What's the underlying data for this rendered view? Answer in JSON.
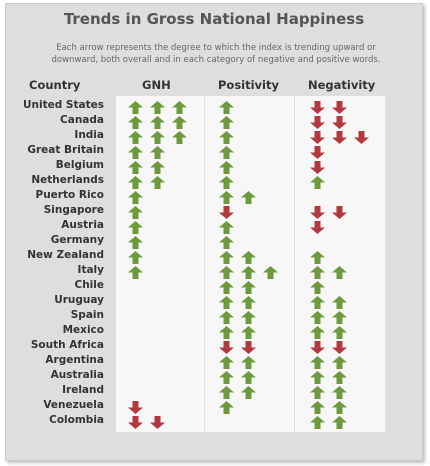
{
  "title": "Trends in Gross National Happiness",
  "subtitle_line1": "Each arrow represents the degree to which the index is trending upward or",
  "subtitle_line2": "downward, both overall and in each category of negative and positive words.",
  "colors": {
    "up": "#6e9a3e",
    "down": "#b23a3f",
    "panel": "#dedede",
    "column": "#f7f7f7"
  },
  "chart_data": {
    "type": "table",
    "columns": [
      "Country",
      "GNH",
      "Positivity",
      "Negativity"
    ],
    "value_meaning": "positive = number of up arrows, negative = number of down arrows",
    "rows": [
      {
        "country": "United States",
        "gnh": 3,
        "positivity": 1,
        "negativity": -2
      },
      {
        "country": "Canada",
        "gnh": 3,
        "positivity": 1,
        "negativity": -2
      },
      {
        "country": "India",
        "gnh": 3,
        "positivity": 1,
        "negativity": -3
      },
      {
        "country": "Great Britain",
        "gnh": 2,
        "positivity": 1,
        "negativity": -1
      },
      {
        "country": "Belgium",
        "gnh": 2,
        "positivity": 1,
        "negativity": -1
      },
      {
        "country": "Netherlands",
        "gnh": 2,
        "positivity": 1,
        "negativity": 1
      },
      {
        "country": "Puerto Rico",
        "gnh": 1,
        "positivity": 2,
        "negativity": 0
      },
      {
        "country": "Singapore",
        "gnh": 1,
        "positivity": -1,
        "negativity": -2
      },
      {
        "country": "Austria",
        "gnh": 1,
        "positivity": 1,
        "negativity": -1
      },
      {
        "country": "Germany",
        "gnh": 1,
        "positivity": 1,
        "negativity": 0
      },
      {
        "country": "New Zealand",
        "gnh": 1,
        "positivity": 2,
        "negativity": 1
      },
      {
        "country": "Italy",
        "gnh": 1,
        "positivity": 3,
        "negativity": 2
      },
      {
        "country": "Chile",
        "gnh": 0,
        "positivity": 2,
        "negativity": 1
      },
      {
        "country": "Uruguay",
        "gnh": 0,
        "positivity": 2,
        "negativity": 2
      },
      {
        "country": "Spain",
        "gnh": 0,
        "positivity": 2,
        "negativity": 2
      },
      {
        "country": "Mexico",
        "gnh": 0,
        "positivity": 2,
        "negativity": 2
      },
      {
        "country": "South Africa",
        "gnh": 0,
        "positivity": -2,
        "negativity": -2
      },
      {
        "country": "Argentina",
        "gnh": 0,
        "positivity": 2,
        "negativity": 2
      },
      {
        "country": "Australia",
        "gnh": 0,
        "positivity": 2,
        "negativity": 2
      },
      {
        "country": "Ireland",
        "gnh": 0,
        "positivity": 2,
        "negativity": 2
      },
      {
        "country": "Venezuela",
        "gnh": -1,
        "positivity": 1,
        "negativity": 2
      },
      {
        "country": "Colombia",
        "gnh": -2,
        "positivity": 0,
        "negativity": 2
      }
    ]
  }
}
